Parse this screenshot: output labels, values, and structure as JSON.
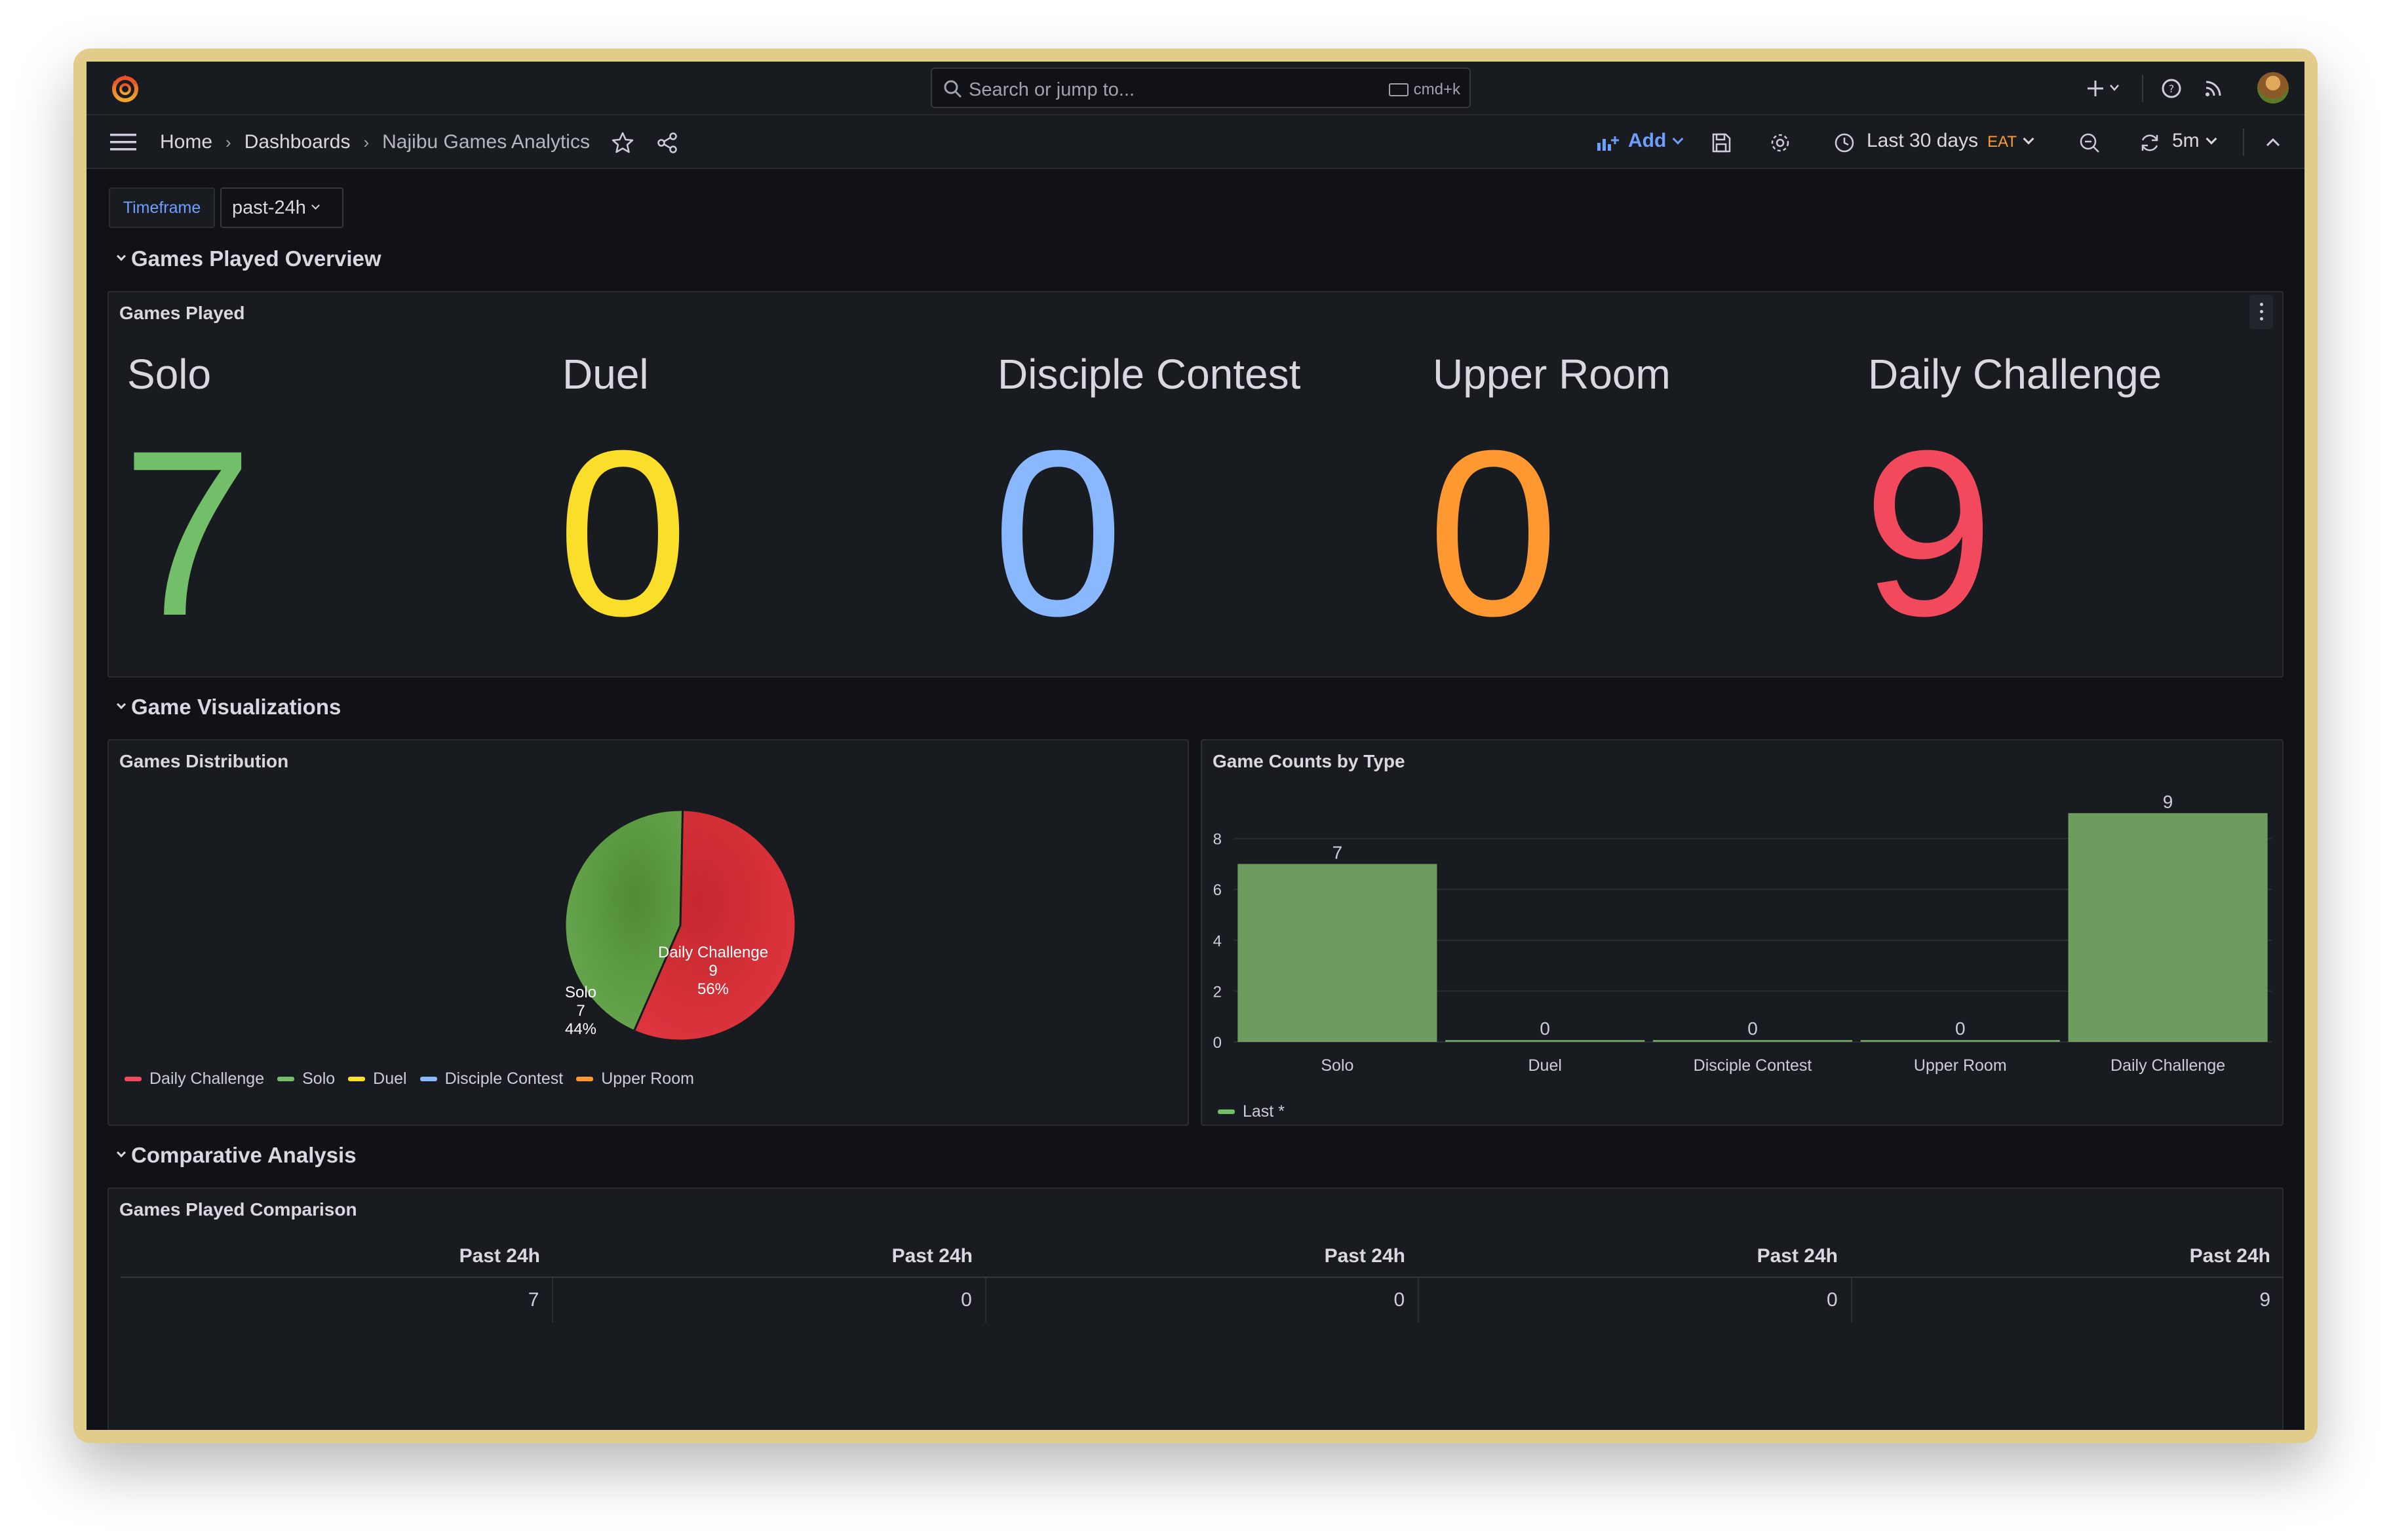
{
  "search": {
    "placeholder": "Search or jump to...",
    "shortcut": "cmd+k"
  },
  "breadcrumb": {
    "home": "Home",
    "dashboards": "Dashboards",
    "current": "Najibu Games Analytics"
  },
  "toolbar": {
    "add_label": "Add",
    "time_range": "Last 30 days",
    "timezone": "EAT",
    "refresh_interval": "5m"
  },
  "variable": {
    "label": "Timeframe",
    "value": "past-24h"
  },
  "rows": {
    "overview": "Games Played Overview",
    "visualizations": "Game Visualizations",
    "comparative": "Comparative Analysis"
  },
  "stats_panel": {
    "title": "Games Played",
    "stats": [
      {
        "name": "Solo",
        "value": "7",
        "color": "#73bf69"
      },
      {
        "name": "Duel",
        "value": "0",
        "color": "#fade2a"
      },
      {
        "name": "Disciple Contest",
        "value": "0",
        "color": "#8ab8ff"
      },
      {
        "name": "Upper Room",
        "value": "0",
        "color": "#ff9830"
      },
      {
        "name": "Daily Challenge",
        "value": "9",
        "color": "#f2495c"
      }
    ]
  },
  "pie_panel": {
    "title": "Games Distribution",
    "slice_labels": {
      "solo": {
        "name": "Solo",
        "value": "7",
        "pct": "44%"
      },
      "daily": {
        "name": "Daily Challenge",
        "value": "9",
        "pct": "56%"
      }
    },
    "legend": [
      {
        "name": "Daily Challenge",
        "color": "#f2495c"
      },
      {
        "name": "Solo",
        "color": "#73bf69"
      },
      {
        "name": "Duel",
        "color": "#fade2a"
      },
      {
        "name": "Disciple Contest",
        "color": "#8ab8ff"
      },
      {
        "name": "Upper Room",
        "color": "#ff9830"
      }
    ]
  },
  "bar_panel": {
    "title": "Game Counts by Type",
    "legend_label": "Last *"
  },
  "table_panel": {
    "title": "Games Played Comparison",
    "headers": [
      "Past 24h",
      "Past 24h",
      "Past 24h",
      "Past 24h",
      "Past 24h"
    ],
    "values": [
      "7",
      "0",
      "0",
      "0",
      "9"
    ]
  },
  "chart_data": [
    {
      "type": "pie",
      "labels": [
        "Daily Challenge",
        "Solo",
        "Duel",
        "Disciple Contest",
        "Upper Room"
      ],
      "values": [
        9,
        7,
        0,
        0,
        0
      ],
      "colors": [
        "#f2495c",
        "#73bf69",
        "#fade2a",
        "#8ab8ff",
        "#ff9830"
      ]
    },
    {
      "type": "bar",
      "categories": [
        "Solo",
        "Duel",
        "Disciple Contest",
        "Upper Room",
        "Daily Challenge"
      ],
      "values": [
        7,
        0,
        0,
        0,
        9
      ],
      "yticks": [
        0,
        2,
        4,
        6,
        8
      ],
      "ylim": [
        0,
        10
      ],
      "color": "#73bf69",
      "legend_placement": "bottom-left"
    }
  ]
}
